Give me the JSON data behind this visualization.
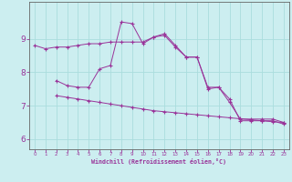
{
  "xlabel": "Windchill (Refroidissement éolien,°C)",
  "bg_color": "#cceef0",
  "grid_color": "#aadddd",
  "line_color": "#993399",
  "spine_color": "#666666",
  "x_ticks": [
    0,
    1,
    2,
    3,
    4,
    5,
    6,
    7,
    8,
    9,
    10,
    11,
    12,
    13,
    14,
    15,
    16,
    17,
    18,
    19,
    20,
    21,
    22,
    23
  ],
  "y_ticks": [
    6,
    7,
    8,
    9
  ],
  "ylim": [
    5.7,
    10.1
  ],
  "xlim": [
    -0.5,
    23.5
  ],
  "line1_x": [
    0,
    1,
    2,
    3,
    4,
    5,
    6,
    7,
    8,
    9,
    10,
    11,
    12,
    13,
    14,
    15,
    16,
    17,
    18,
    19,
    20,
    21,
    22,
    23
  ],
  "line1_y": [
    8.8,
    8.7,
    8.75,
    8.75,
    8.8,
    8.85,
    8.85,
    8.9,
    8.9,
    8.9,
    8.9,
    9.05,
    9.1,
    8.75,
    8.45,
    8.45,
    7.55,
    7.55,
    7.1,
    6.6,
    6.6,
    6.6,
    6.6,
    6.5
  ],
  "line2_x": [
    2,
    3,
    4,
    5,
    6,
    7,
    8,
    9,
    10,
    11,
    12,
    13,
    14,
    15,
    16,
    17,
    18,
    19,
    20,
    21,
    22,
    23
  ],
  "line2_y": [
    7.75,
    7.6,
    7.55,
    7.55,
    8.1,
    8.2,
    9.5,
    9.45,
    8.85,
    9.05,
    9.15,
    8.8,
    8.45,
    8.45,
    7.5,
    7.55,
    7.2,
    6.55,
    6.55,
    6.55,
    6.55,
    6.45
  ],
  "line3_x": [
    2,
    3,
    4,
    5,
    6,
    7,
    8,
    9,
    10,
    11,
    12,
    13,
    14,
    15,
    16,
    17,
    18,
    19,
    20,
    21,
    22,
    23
  ],
  "line3_y": [
    7.3,
    7.25,
    7.2,
    7.15,
    7.1,
    7.05,
    7.0,
    6.95,
    6.9,
    6.85,
    6.82,
    6.79,
    6.76,
    6.73,
    6.7,
    6.67,
    6.64,
    6.61,
    6.58,
    6.55,
    6.52,
    6.5
  ]
}
